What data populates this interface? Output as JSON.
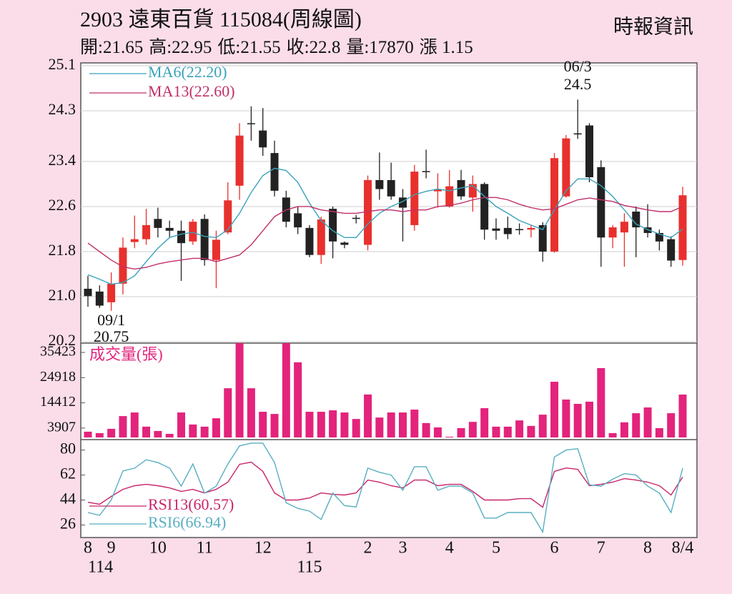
{
  "chart_data": [
    {
      "type": "candlestick",
      "title": "2903  遠東百貨 115084(周線圖)",
      "source": "時報資訊",
      "stats": [
        {
          "label": "開:",
          "value": 21.65
        },
        {
          "label": "高:",
          "value": 22.95
        },
        {
          "label": "低:",
          "value": 21.55
        },
        {
          "label": "收:",
          "value": 22.8
        },
        {
          "label": "量:",
          "value": 17870
        },
        {
          "label": "漲 ",
          "value": 1.15
        }
      ],
      "categories": [
        "8",
        null,
        "9",
        null,
        null,
        null,
        "10",
        null,
        null,
        null,
        "11",
        null,
        null,
        null,
        null,
        "12",
        null,
        null,
        null,
        "1",
        null,
        null,
        null,
        null,
        "2",
        null,
        null,
        "3",
        null,
        null,
        null,
        "4",
        null,
        null,
        null,
        "5",
        null,
        null,
        null,
        null,
        "6",
        null,
        null,
        null,
        "7",
        null,
        null,
        null,
        "8",
        null,
        null,
        "8/4"
      ],
      "category_years": [
        "114",
        null,
        null,
        null,
        null,
        null,
        null,
        null,
        null,
        null,
        null,
        null,
        null,
        null,
        null,
        null,
        null,
        null,
        null,
        "115",
        null,
        null,
        null,
        null,
        null,
        null,
        null,
        null,
        null,
        null,
        null,
        null,
        null,
        null,
        null,
        null,
        null,
        null,
        null,
        null,
        null,
        null,
        null,
        null,
        null,
        null,
        null,
        null,
        null,
        null,
        null,
        null
      ],
      "open": [
        21.14,
        21.09,
        20.9,
        21.23,
        21.97,
        22.02,
        22.38,
        22.22,
        22.17,
        21.98,
        22.38,
        21.65,
        22.14,
        22.97,
        24.08,
        23.95,
        23.55,
        22.76,
        22.48,
        22.22,
        21.74,
        22.56,
        21.96,
        22.4,
        21.92,
        23.07,
        23.07,
        22.76,
        22.27,
        23.23,
        22.87,
        22.6,
        23.07,
        22.76,
        23.0,
        22.21,
        22.22,
        22.2,
        22.19,
        22.27,
        21.8,
        22.78,
        23.9,
        24.04,
        23.3,
        22.05,
        22.14,
        22.51,
        22.23,
        22.13,
        22.02,
        21.65
      ],
      "high": [
        21.37,
        21.2,
        21.43,
        22.05,
        22.44,
        22.56,
        22.58,
        22.35,
        22.35,
        22.38,
        22.46,
        22.17,
        23.03,
        24.08,
        24.38,
        24.35,
        23.77,
        22.88,
        22.6,
        22.27,
        22.42,
        22.6,
        21.98,
        22.45,
        23.15,
        23.56,
        23.38,
        22.91,
        23.34,
        23.61,
        23.19,
        23.25,
        23.25,
        23.15,
        23.03,
        22.39,
        22.42,
        22.3,
        22.27,
        22.32,
        23.55,
        23.87,
        24.5,
        24.08,
        23.42,
        22.27,
        22.48,
        22.6,
        22.64,
        22.19,
        22.07,
        22.95
      ],
      "low": [
        20.82,
        20.8,
        20.75,
        21.04,
        21.86,
        21.92,
        22.05,
        22.05,
        21.28,
        21.92,
        21.55,
        21.15,
        22.11,
        22.72,
        23.77,
        23.5,
        22.78,
        22.23,
        22.11,
        21.7,
        21.58,
        21.68,
        21.86,
        22.3,
        21.82,
        22.72,
        22.72,
        21.98,
        22.17,
        23.1,
        22.58,
        22.58,
        22.72,
        22.51,
        22.01,
        22.01,
        22.02,
        22.1,
        22.05,
        21.62,
        21.78,
        22.76,
        23.8,
        23.03,
        21.53,
        21.86,
        21.53,
        21.7,
        22.05,
        21.82,
        21.53,
        21.55
      ],
      "close": [
        21.01,
        20.84,
        21.23,
        21.87,
        22.02,
        22.27,
        22.22,
        22.17,
        21.95,
        22.33,
        21.65,
        22.01,
        22.71,
        23.86,
        24.08,
        23.65,
        22.88,
        22.33,
        22.23,
        21.74,
        22.37,
        21.98,
        21.92,
        22.38,
        23.07,
        22.91,
        22.78,
        22.58,
        23.22,
        23.22,
        22.91,
        22.96,
        22.78,
        23.0,
        22.19,
        22.17,
        22.11,
        22.18,
        22.22,
        21.8,
        23.46,
        23.81,
        23.88,
        23.12,
        22.05,
        22.23,
        22.33,
        22.23,
        22.13,
        21.98,
        21.64,
        22.8
      ],
      "up_color": "#e8302d",
      "down_color": "#222222",
      "series": [
        {
          "name": "MA6(22.20)",
          "color": "#3aa3ba",
          "values": [
            21.39,
            21.31,
            21.22,
            21.25,
            21.37,
            21.62,
            21.86,
            22.05,
            22.11,
            22.14,
            22.07,
            22.05,
            22.19,
            22.48,
            22.85,
            23.15,
            23.28,
            23.24,
            23.03,
            22.66,
            22.35,
            22.17,
            22.05,
            22.05,
            22.29,
            22.48,
            22.6,
            22.69,
            22.81,
            22.87,
            22.91,
            22.88,
            22.93,
            22.97,
            22.78,
            22.6,
            22.48,
            22.35,
            22.27,
            22.19,
            22.54,
            22.88,
            23.09,
            23.09,
            22.97,
            22.78,
            22.54,
            22.29,
            22.19,
            22.11,
            22.05,
            22.2
          ]
        },
        {
          "name": "MA13(22.60)",
          "color": "#c0306a",
          "values": [
            21.95,
            21.8,
            21.65,
            21.53,
            21.49,
            21.52,
            21.58,
            21.62,
            21.65,
            21.68,
            21.68,
            21.62,
            21.68,
            21.74,
            21.92,
            22.17,
            22.42,
            22.54,
            22.6,
            22.6,
            22.54,
            22.51,
            22.48,
            22.48,
            22.51,
            22.54,
            22.54,
            22.51,
            22.54,
            22.54,
            22.6,
            22.62,
            22.66,
            22.72,
            22.76,
            22.76,
            22.72,
            22.64,
            22.58,
            22.54,
            22.56,
            22.64,
            22.72,
            22.75,
            22.72,
            22.69,
            22.62,
            22.58,
            22.54,
            22.51,
            22.51,
            22.6
          ]
        }
      ],
      "annotations": [
        {
          "date": "06/3",
          "value": 24.5,
          "kind": "high"
        },
        {
          "date": "09/1",
          "value": 20.75,
          "kind": "low"
        }
      ],
      "ylim": [
        20.2,
        25.1
      ],
      "yticks": [
        25.1,
        24.3,
        23.4,
        22.6,
        21.8,
        {
          "value": 21,
          "label": "21.0"
        },
        20.2
      ],
      "grid": true
    },
    {
      "type": "bar",
      "label": "成交量(張)",
      "color": "#e3237c",
      "values": [
        2400,
        1800,
        3600,
        8900,
        10400,
        4500,
        2700,
        1500,
        10400,
        5400,
        4500,
        8000,
        20500,
        39300,
        20500,
        10700,
        9800,
        39300,
        31300,
        10700,
        10700,
        11300,
        10400,
        7700,
        17900,
        8300,
        10400,
        10400,
        11600,
        6000,
        4200,
        300,
        3900,
        6500,
        12200,
        4500,
        4500,
        7100,
        4800,
        9500,
        23200,
        15800,
        14000,
        14900,
        28900,
        1800,
        6300,
        10100,
        12500,
        3900,
        10100,
        17870
      ],
      "ylim": [
        0,
        39300
      ],
      "yticks": [
        35423,
        24918,
        14412,
        3907
      ]
    },
    {
      "type": "line",
      "series": [
        {
          "name": "RSI13(60.57)",
          "color": "#c8246a",
          "values": [
            42.4,
            40.9,
            46.6,
            51.7,
            54.3,
            55.3,
            54.3,
            52.7,
            50.2,
            51.7,
            49.1,
            51.7,
            56.9,
            69.7,
            71.3,
            64.6,
            49.1,
            44,
            44,
            45.5,
            49.1,
            48.1,
            47.6,
            49.1,
            58.4,
            56.9,
            54.3,
            52.7,
            58.4,
            58.4,
            54.3,
            55.3,
            55.3,
            50.2,
            44,
            44,
            44,
            45,
            45,
            38.8,
            64.6,
            67.1,
            66.1,
            54.3,
            55.3,
            56.9,
            59.4,
            58.4,
            56.9,
            54.3,
            47.6,
            60.57
          ]
        },
        {
          "name": "RSI6(66.94)",
          "color": "#58aec2",
          "values": [
            35,
            33,
            44,
            65,
            67,
            73,
            71,
            67,
            54,
            70,
            49,
            54,
            70,
            83,
            85,
            85,
            71,
            42,
            38,
            36,
            30,
            49,
            40,
            39,
            67,
            64,
            62,
            51,
            68,
            68,
            51,
            54,
            54,
            49,
            31,
            31,
            35,
            35,
            35,
            21,
            75,
            80,
            81,
            55,
            54,
            59,
            63,
            62,
            54,
            49,
            35,
            66.94
          ]
        }
      ],
      "ylim": [
        18,
        86
      ],
      "yticks": [
        80,
        62,
        44,
        26
      ]
    }
  ]
}
